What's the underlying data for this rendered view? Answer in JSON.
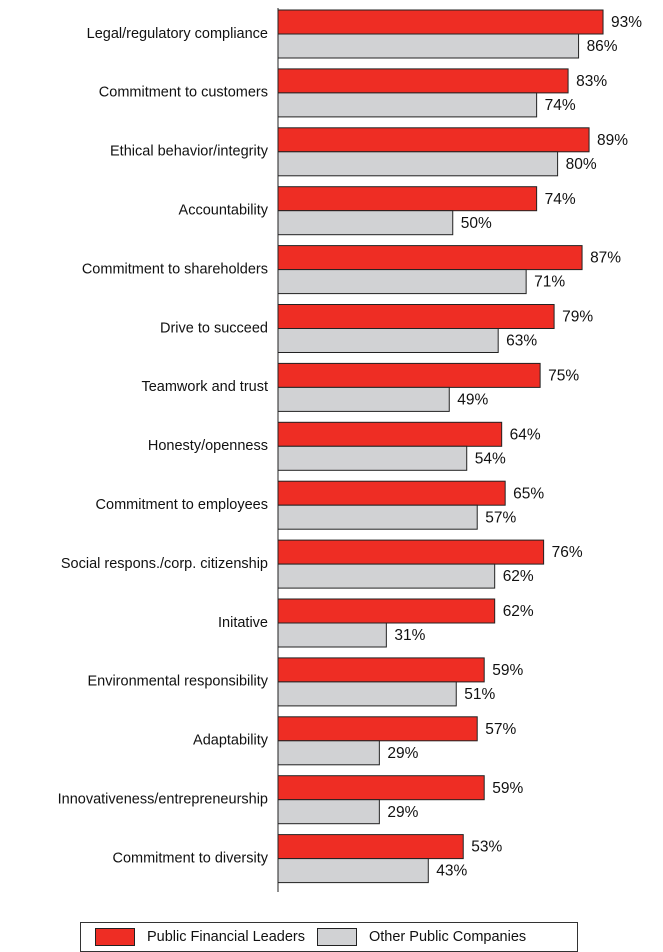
{
  "chart_data": {
    "type": "bar",
    "orientation": "horizontal",
    "categories": [
      "Legal/regulatory compliance",
      "Commitment to customers",
      "Ethical behavior/integrity",
      "Accountability",
      "Commitment to shareholders",
      "Drive to succeed",
      "Teamwork and trust",
      "Honesty/openness",
      "Commitment to employees",
      "Social respons./corp. citizenship",
      "Initative",
      "Environmental responsibility",
      "Adaptability",
      "Innovativeness/entrepreneurship",
      "Commitment to diversity"
    ],
    "series": [
      {
        "name": "Public Financial Leaders",
        "color": "#ee2d24",
        "values": [
          93,
          83,
          89,
          74,
          87,
          79,
          75,
          64,
          65,
          76,
          62,
          59,
          57,
          59,
          53
        ]
      },
      {
        "name": "Other Public Companies",
        "color": "#d1d2d4",
        "values": [
          86,
          74,
          80,
          50,
          71,
          63,
          49,
          54,
          57,
          62,
          31,
          51,
          29,
          29,
          43
        ]
      }
    ],
    "value_suffix": "%",
    "xlim": [
      0,
      100
    ],
    "legend": "bottom",
    "grid": false
  }
}
